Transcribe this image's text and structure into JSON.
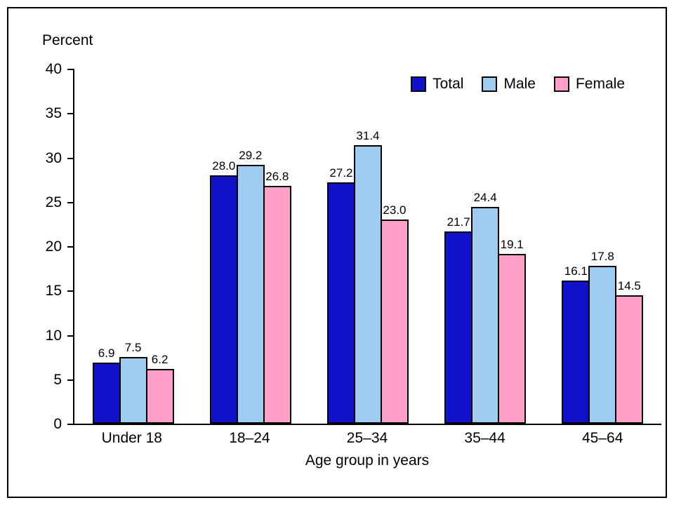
{
  "chart_data": {
    "type": "bar",
    "title": "",
    "ylabel": "Percent",
    "xlabel": "Age group in years",
    "ylim": [
      0,
      40
    ],
    "y_ticks": [
      0,
      5,
      10,
      15,
      20,
      25,
      30,
      35,
      40
    ],
    "categories": [
      "Under 18",
      "18–24",
      "25–34",
      "35–44",
      "45–64"
    ],
    "series": [
      {
        "name": "Total",
        "color": "#1212cc",
        "values": [
          6.9,
          28.0,
          27.2,
          21.7,
          16.1
        ]
      },
      {
        "name": "Male",
        "color": "#9fcdf2",
        "values": [
          7.5,
          29.2,
          31.4,
          24.4,
          17.8
        ]
      },
      {
        "name": "Female",
        "color": "#ffa0c9",
        "values": [
          6.2,
          26.8,
          23.0,
          19.1,
          14.5
        ]
      }
    ],
    "legend_position": "top-right",
    "grid": false,
    "colors": {
      "bar_outline": "#000000",
      "axis": "#000000",
      "background": "#ffffff"
    }
  }
}
